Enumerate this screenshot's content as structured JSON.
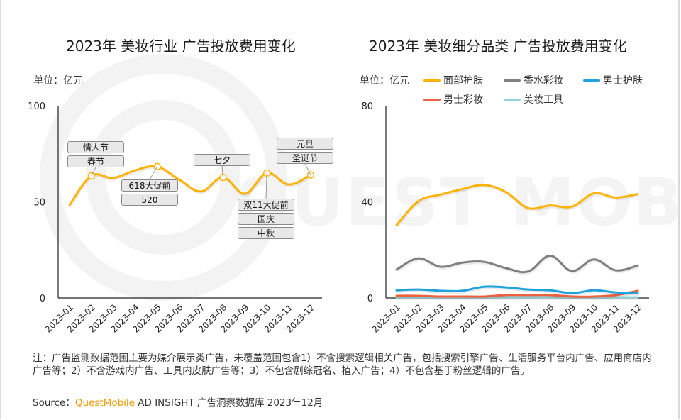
{
  "left_chart": {
    "title": "2023年 美妆行业 广告投放费用变化",
    "unit": "单位：亿元",
    "annotations": [
      {
        "month_index": 1,
        "labels": [
          "情人节",
          "春节"
        ]
      },
      {
        "month_index": 4,
        "labels": [
          "618大促前",
          "520"
        ]
      },
      {
        "month_index": 7,
        "labels": [
          "七夕"
        ]
      },
      {
        "month_index": 9,
        "labels": [
          "双11大促前",
          "国庆",
          "中秋"
        ]
      },
      {
        "month_index": 11,
        "labels": [
          "元旦",
          "圣诞节"
        ]
      }
    ]
  },
  "right_chart": {
    "title": "2023年 美妆细分品类 广告投放费用变化",
    "unit": "单位：亿元"
  },
  "chart_data": [
    {
      "type": "line",
      "title": "2023年 美妆行业 广告投放费用变化",
      "ylabel": "单位：亿元",
      "xlabel": "",
      "categories": [
        "2023-01",
        "2023-02",
        "2023-03",
        "2023-04",
        "2023-05",
        "2023-06",
        "2023-07",
        "2023-08",
        "2023-09",
        "2023-10",
        "2023-11",
        "2023-12"
      ],
      "series": [
        {
          "name": "美妆行业",
          "color": "#ffb300",
          "values": [
            48.3,
            63.5,
            62.4,
            66.4,
            68.3,
            61.6,
            55.4,
            62.7,
            54.2,
            65.0,
            59.0,
            64.0
          ]
        }
      ],
      "marked_points": [
        1,
        4,
        7,
        9,
        11
      ],
      "ylim": [
        0,
        100
      ],
      "yticks": [
        0,
        50,
        100
      ],
      "grid": false,
      "legend": "none"
    },
    {
      "type": "line",
      "title": "2023年 美妆细分品类 广告投放费用变化",
      "ylabel": "单位：亿元",
      "xlabel": "",
      "categories": [
        "2023-01",
        "2023-02",
        "2023-03",
        "2023-04",
        "2023-05",
        "2023-06",
        "2023-07",
        "2023-08",
        "2023-09",
        "2023-10",
        "2023-11",
        "2023-12"
      ],
      "series": [
        {
          "name": "面部护肤",
          "color": "#ffb300",
          "values": [
            30.3,
            40.3,
            43.0,
            45.3,
            47.0,
            44.0,
            37.4,
            38.5,
            38.0,
            43.5,
            41.8,
            43.2
          ]
        },
        {
          "name": "香水彩妆",
          "color": "#7f7f7f",
          "values": [
            11.8,
            16.5,
            13.0,
            14.7,
            15.0,
            12.4,
            11.0,
            17.6,
            11.2,
            16.0,
            11.5,
            13.5
          ]
        },
        {
          "name": "男士护肤",
          "color": "#1fa3dc",
          "values": [
            3.2,
            3.5,
            3.0,
            3.0,
            4.7,
            4.4,
            3.5,
            3.2,
            2.0,
            3.2,
            2.3,
            2.0
          ]
        },
        {
          "name": "男士彩妆",
          "color": "#f0603c",
          "values": [
            0.9,
            0.9,
            0.6,
            0.6,
            0.6,
            1.2,
            1.2,
            1.2,
            0.6,
            0.6,
            1.2,
            3.0
          ]
        },
        {
          "name": "美妆工具",
          "color": "#8fd3d8",
          "values": [
            0.3,
            0.3,
            0.3,
            0.3,
            0.3,
            0.3,
            0.3,
            0.3,
            0.3,
            0.3,
            0.3,
            0.3
          ]
        }
      ],
      "ylim": [
        0,
        80
      ],
      "yticks": [
        0,
        40,
        80
      ],
      "grid": false,
      "legend": "top"
    }
  ],
  "footer": {
    "note": "注：广告监测数据范围主要为媒介展示类广告，未覆盖范围包含1）不含搜索逻辑相关广告，包括搜索引擎广告、生活服务平台内广告、应用商店内广告等；2）不含游戏内广告、工具内皮肤广告等；3）不包含剧综冠名、植入广告；4）不包含基于粉丝逻辑的广告。",
    "source_prefix": "Source：",
    "source_brand": "QuestMobile",
    "source_rest": " AD INSIGHT 广告洞察数据库 2023年12月"
  },
  "watermark": {
    "text": "QUEST MOBILE"
  }
}
